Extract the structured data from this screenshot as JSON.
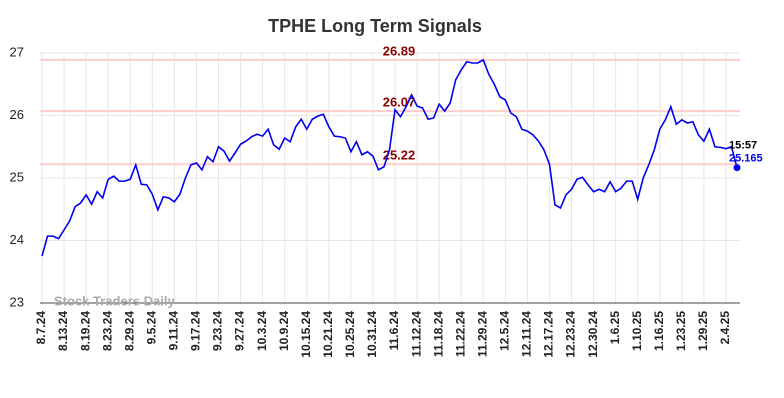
{
  "chart_data": {
    "type": "line",
    "title": "TPHE Long Term Signals",
    "categories": [
      "8.7.24",
      null,
      null,
      null,
      "8.13.24",
      null,
      null,
      null,
      "8.19.24",
      null,
      null,
      null,
      "8.23.24",
      null,
      null,
      null,
      "8.29.24",
      null,
      null,
      null,
      "9.5.24",
      null,
      null,
      null,
      "9.11.24",
      null,
      null,
      null,
      "9.17.24",
      null,
      null,
      null,
      "9.23.24",
      null,
      null,
      null,
      "9.27.24",
      null,
      null,
      null,
      "10.3.24",
      null,
      null,
      null,
      "10.9.24",
      null,
      null,
      null,
      "10.15.24",
      null,
      null,
      null,
      "10.21.24",
      null,
      null,
      null,
      "10.25.24",
      null,
      null,
      null,
      "10.31.24",
      null,
      null,
      null,
      "11.6.24",
      null,
      null,
      null,
      "11.12.24",
      null,
      null,
      null,
      "11.18.24",
      null,
      null,
      null,
      "11.22.24",
      null,
      null,
      null,
      "11.29.24",
      null,
      null,
      null,
      "12.5.24",
      null,
      null,
      null,
      "12.11.24",
      null,
      null,
      null,
      "12.17.24",
      null,
      null,
      null,
      "12.23.24",
      null,
      null,
      null,
      "12.30.24",
      null,
      null,
      null,
      "1.6.25",
      null,
      null,
      null,
      "1.10.25",
      null,
      null,
      null,
      "1.16.25",
      null,
      null,
      null,
      "1.23.25",
      null,
      null,
      null,
      "1.29.25",
      null,
      null,
      null,
      "2.4.25",
      null,
      null
    ],
    "values": [
      23.75,
      24.07,
      24.07,
      24.03,
      24.17,
      24.31,
      24.54,
      24.6,
      24.73,
      24.58,
      24.78,
      24.68,
      24.98,
      25.03,
      24.95,
      24.95,
      24.98,
      25.21,
      24.9,
      24.89,
      24.74,
      24.49,
      24.7,
      24.68,
      24.62,
      24.74,
      25.0,
      25.21,
      25.24,
      25.13,
      25.34,
      25.26,
      25.5,
      25.43,
      25.27,
      25.4,
      25.54,
      25.59,
      25.66,
      25.7,
      25.67,
      25.78,
      25.53,
      25.46,
      25.64,
      25.58,
      25.82,
      25.94,
      25.78,
      25.94,
      25.99,
      26.02,
      25.82,
      25.67,
      25.66,
      25.64,
      25.42,
      25.58,
      25.37,
      25.42,
      25.35,
      25.13,
      25.18,
      25.45,
      26.09,
      25.98,
      26.14,
      26.33,
      26.15,
      26.12,
      25.94,
      25.96,
      26.18,
      26.07,
      26.2,
      26.57,
      26.73,
      26.86,
      26.84,
      26.84,
      26.89,
      26.66,
      26.5,
      26.3,
      26.25,
      26.04,
      25.98,
      25.78,
      25.75,
      25.69,
      25.59,
      25.45,
      25.22,
      24.57,
      24.52,
      24.73,
      24.82,
      24.98,
      25.01,
      24.89,
      24.78,
      24.82,
      24.78,
      24.94,
      24.78,
      24.84,
      24.95,
      24.95,
      24.66,
      25.0,
      25.21,
      25.45,
      25.78,
      25.93,
      26.14,
      25.86,
      25.93,
      25.88,
      25.9,
      25.69,
      25.59,
      25.78,
      25.5,
      25.49,
      25.47,
      25.5,
      25.165
    ],
    "color": "#0000ee",
    "hlines": [
      26.89,
      26.07,
      25.22
    ],
    "hline_color": "#ffcccc",
    "hline_label_color": "#8b0000",
    "last_time": "15:57",
    "watermark": "Stock Traders Daily",
    "ylim": [
      23,
      27
    ],
    "yticks": [
      23,
      24,
      25,
      26,
      27
    ],
    "grid": true
  }
}
